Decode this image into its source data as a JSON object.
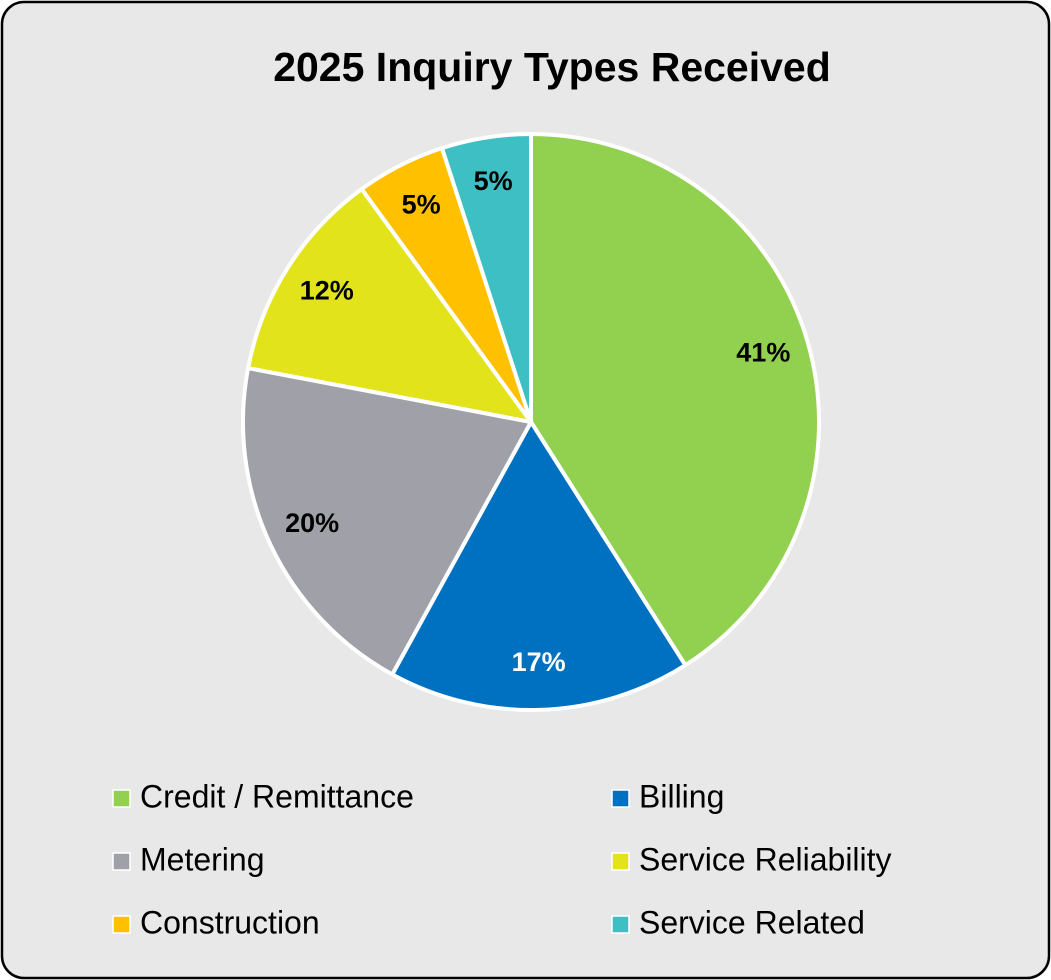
{
  "chart_data": {
    "type": "pie",
    "title": "2025 Inquiry Types Received",
    "categories": [
      "Credit / Remittance",
      "Billing",
      "Metering",
      "Service Reliability",
      "Construction",
      "Service Related"
    ],
    "values": [
      41,
      17,
      20,
      12,
      5,
      5
    ],
    "value_labels": [
      "41%",
      "17%",
      "20%",
      "12%",
      "5%",
      "5%"
    ],
    "colors": [
      "#92d050",
      "#0070c0",
      "#a0a0a8",
      "#e2e31b",
      "#ffc000",
      "#3dbfc4"
    ],
    "legend": "bottom"
  }
}
